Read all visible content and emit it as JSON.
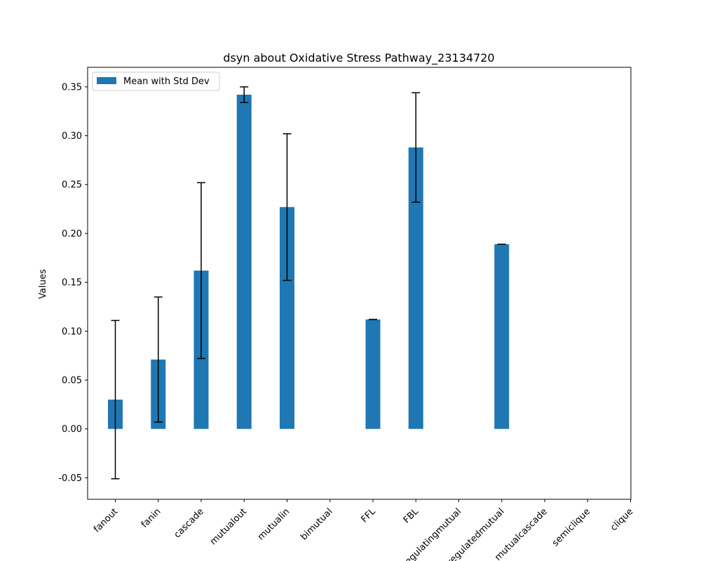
{
  "chart_data": {
    "type": "bar",
    "title": "dsyn about Oxidative Stress Pathway_23134720",
    "xlabel": "",
    "ylabel": "Values",
    "ylim": [
      -0.072,
      0.37
    ],
    "yticks": [
      "-0.05",
      "0.00",
      "0.05",
      "0.10",
      "0.15",
      "0.20",
      "0.25",
      "0.30",
      "0.35"
    ],
    "categories": [
      "fanout",
      "fanin",
      "cascade",
      "mutualout",
      "mutualin",
      "bimutual",
      "FFL",
      "FBL",
      "regulatingmutual",
      "regulatedmutual",
      "mutualcascade",
      "semiclique",
      "clique"
    ],
    "series": [
      {
        "name": "Mean with Std Dev",
        "color": "#1f77b4",
        "values": [
          0.03,
          0.071,
          0.162,
          0.342,
          0.227,
          null,
          0.112,
          0.288,
          null,
          0.189,
          null,
          null,
          null
        ],
        "errors": [
          0.081,
          0.064,
          0.09,
          0.008,
          0.075,
          null,
          0.0,
          0.056,
          null,
          0.0,
          null,
          null,
          null
        ]
      }
    ],
    "legend": {
      "placement": "top-left",
      "label": "Mean with Std Dev"
    },
    "grid": false
  }
}
